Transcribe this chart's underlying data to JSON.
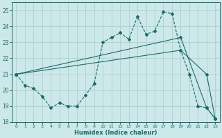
{
  "xlabel": "Humidex (Indice chaleur)",
  "xlim": [
    -0.5,
    23.5
  ],
  "ylim": [
    18.0,
    25.5
  ],
  "yticks": [
    18,
    19,
    20,
    21,
    22,
    23,
    24,
    25
  ],
  "xticks": [
    0,
    1,
    2,
    3,
    4,
    5,
    6,
    7,
    8,
    9,
    10,
    11,
    12,
    13,
    14,
    15,
    16,
    17,
    18,
    19,
    20,
    21,
    22,
    23
  ],
  "background_color": "#cce8e8",
  "grid_color": "#aacccc",
  "line_color": "#1a6b6b",
  "line1_x": [
    0,
    1,
    2,
    3,
    4,
    5,
    6,
    7,
    8,
    9,
    10,
    11,
    12,
    13,
    14,
    15,
    16,
    17,
    18,
    19,
    20,
    21,
    22,
    23
  ],
  "line1_y": [
    21.0,
    20.3,
    20.1,
    19.6,
    18.9,
    19.2,
    19.0,
    19.0,
    19.7,
    20.4,
    23.0,
    23.3,
    23.6,
    23.2,
    24.6,
    23.5,
    23.7,
    24.9,
    24.8,
    22.5,
    21.0,
    19.0,
    18.9,
    18.2
  ],
  "line2_x": [
    0,
    19,
    22,
    23
  ],
  "line2_y": [
    21.0,
    23.3,
    18.9,
    18.2
  ],
  "line3_x": [
    0,
    19,
    22,
    23
  ],
  "line3_y": [
    21.0,
    22.5,
    21.0,
    18.2
  ]
}
